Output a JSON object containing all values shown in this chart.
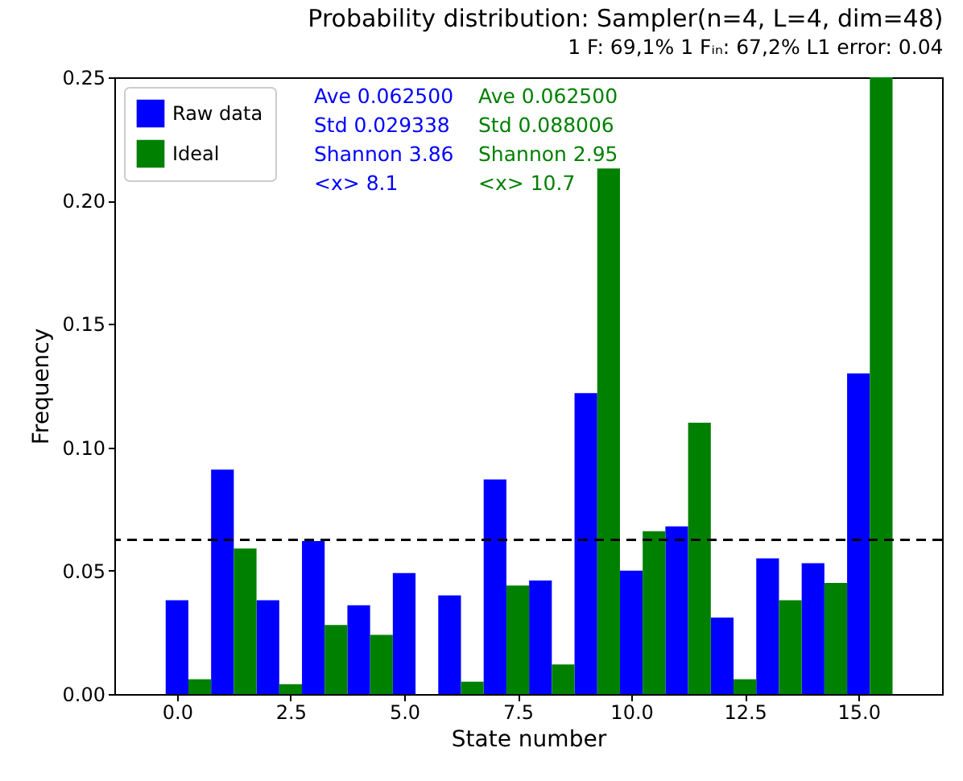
{
  "chart_data": {
    "type": "bar",
    "title": "Probability distribution: Sampler(n=4, L=4, dim=48)",
    "subtitle": "1   F: 69,1%   1   Fᵢₙ: 67,2%   L1 error: 0.04",
    "xlabel": "State number",
    "ylabel": "Frequency",
    "series": [
      {
        "name": "Raw data",
        "color": "#0000ff",
        "x": [
          0,
          1,
          2,
          3,
          4,
          5,
          6,
          7,
          8,
          9,
          10,
          11,
          12,
          13,
          14,
          15
        ],
        "values": [
          0.038,
          0.091,
          0.038,
          0.062,
          0.036,
          0.049,
          0.04,
          0.087,
          0.046,
          0.122,
          0.05,
          0.068,
          0.031,
          0.055,
          0.053,
          0.13
        ]
      },
      {
        "name": "Ideal",
        "color": "#008000",
        "x": [
          0.5,
          1.5,
          2.5,
          3.5,
          4.5,
          5.5,
          6.5,
          7.5,
          8.5,
          9.5,
          10.5,
          11.5,
          12.5,
          13.5,
          14.5,
          15.5
        ],
        "values": [
          0.006,
          0.059,
          0.004,
          0.028,
          0.024,
          0.0,
          0.005,
          0.044,
          0.012,
          0.213,
          0.066,
          0.11,
          0.006,
          0.038,
          0.045,
          0.25
        ]
      }
    ],
    "xlim": [
      -1.38,
      16.84
    ],
    "ylim": [
      0,
      0.25
    ],
    "xticks": [
      {
        "value": 0,
        "label": "0.0"
      },
      {
        "value": 2.5,
        "label": "2.5"
      },
      {
        "value": 5,
        "label": "5.0"
      },
      {
        "value": 7.5,
        "label": "7.5"
      },
      {
        "value": 10,
        "label": "10.0"
      },
      {
        "value": 12.5,
        "label": "12.5"
      },
      {
        "value": 15,
        "label": "15.0"
      }
    ],
    "yticks": [
      {
        "value": 0,
        "label": "0.00"
      },
      {
        "value": 0.05,
        "label": "0.05"
      },
      {
        "value": 0.1,
        "label": "0.10"
      },
      {
        "value": 0.15,
        "label": "0.15"
      },
      {
        "value": 0.2,
        "label": "0.20"
      },
      {
        "value": 0.25,
        "label": "0.25"
      }
    ],
    "ref_lines": [
      {
        "axis": "y",
        "value": 0.0625,
        "color": "#000000",
        "line_style": "dashed"
      }
    ],
    "annotations": [
      "Ave 0.062500",
      "Std 0.029338",
      "Shannon 3.86",
      "<x> 8.1",
      "Ave 0.062500",
      "Std 0.088006",
      "Shannon 2.95",
      "<x> 10.7"
    ],
    "legend": "top left",
    "grid": false
  }
}
